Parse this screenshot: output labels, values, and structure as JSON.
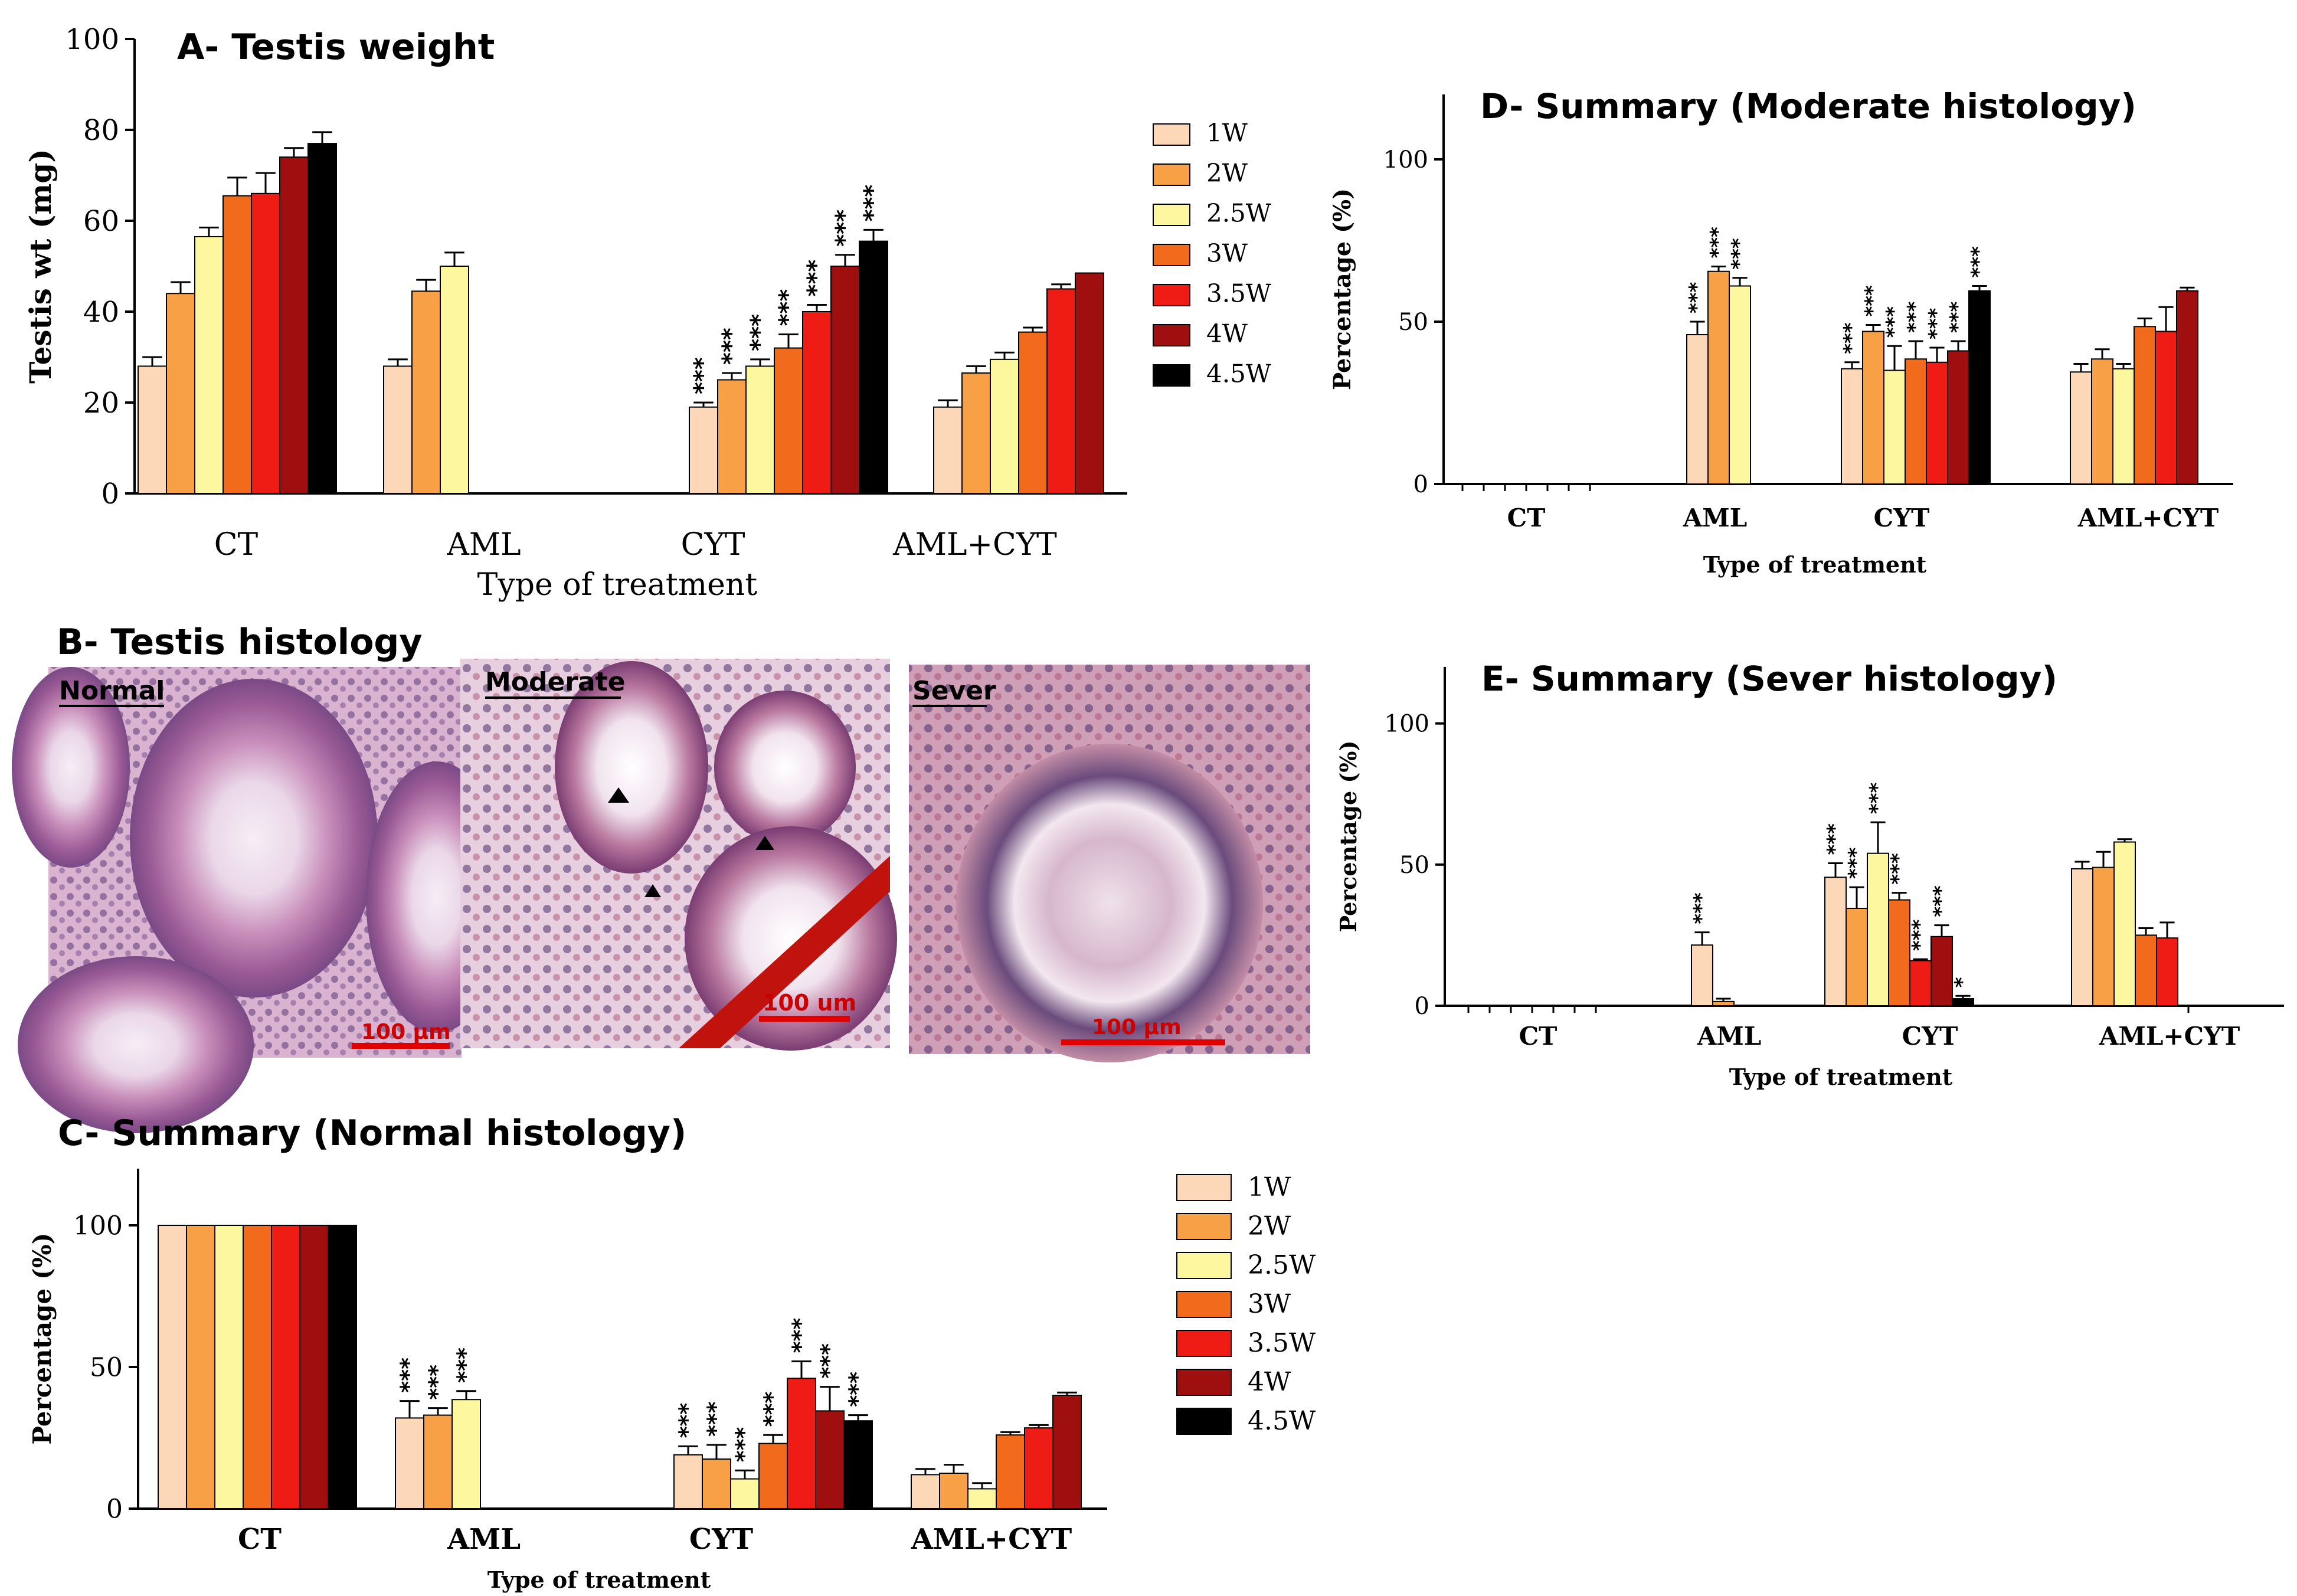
{
  "colors": {
    "1W": "#fcd8b8",
    "2W": "#f7a045",
    "2.5W": "#fdf7a0",
    "3W": "#f26a1b",
    "3.5W": "#ee1c14",
    "4W": "#a00f10",
    "4.5W": "#000000"
  },
  "legend_labels": [
    "1W",
    "2W",
    "2.5W",
    "3W",
    "3.5W",
    "4W",
    "4.5W"
  ],
  "chart_data": [
    {
      "id": "A",
      "type": "bar",
      "title": "A- Testis weight",
      "xlabel": "Type of treatment",
      "ylabel": "Testis wt (mg)",
      "ylim": [
        0,
        100
      ],
      "yticks": [
        "0",
        "20",
        "40",
        "60",
        "80",
        "100"
      ],
      "categories": [
        "CT",
        "AML",
        "CYT",
        "AML+CYT"
      ],
      "series": [
        {
          "name": "1W",
          "values": [
            28,
            28,
            19,
            19
          ],
          "errors": [
            2,
            1.5,
            1,
            1.5
          ],
          "sig": [
            "",
            "",
            "***",
            ""
          ]
        },
        {
          "name": "2W",
          "values": [
            44,
            44.5,
            25,
            26.5
          ],
          "errors": [
            2.5,
            2.5,
            1.5,
            1.5
          ],
          "sig": [
            "",
            "",
            "***",
            ""
          ]
        },
        {
          "name": "2.5W",
          "values": [
            56.5,
            50,
            28,
            29.5
          ],
          "errors": [
            2,
            3,
            1.5,
            1.5
          ],
          "sig": [
            "",
            "",
            "***",
            ""
          ]
        },
        {
          "name": "3W",
          "values": [
            65.5,
            null,
            32,
            35.5
          ],
          "errors": [
            4,
            0,
            3,
            1
          ],
          "sig": [
            "",
            "",
            "***",
            ""
          ]
        },
        {
          "name": "3.5W",
          "values": [
            66,
            null,
            40,
            45
          ],
          "errors": [
            4.5,
            0,
            1.5,
            1
          ],
          "sig": [
            "",
            "",
            "***",
            ""
          ]
        },
        {
          "name": "4W",
          "values": [
            74,
            null,
            50,
            48.5
          ],
          "errors": [
            2,
            0,
            2.5,
            0
          ],
          "sig": [
            "",
            "",
            "***",
            ""
          ]
        },
        {
          "name": "4.5W",
          "values": [
            77,
            null,
            55.5,
            null
          ],
          "errors": [
            2.5,
            0,
            2.5,
            0
          ],
          "sig": [
            "",
            "",
            "***",
            ""
          ]
        }
      ]
    },
    {
      "id": "C",
      "type": "bar",
      "title": "C- Summary (Normal histology)",
      "xlabel": "Type of treatment",
      "ylabel": "Percentage (%)",
      "ylim": [
        0,
        120
      ],
      "yticks": [
        "0",
        "50",
        "100"
      ],
      "categories": [
        "CT",
        "AML",
        "CYT",
        "AML+CYT"
      ],
      "series": [
        {
          "name": "1W",
          "values": [
            100,
            32,
            19,
            12
          ],
          "errors": [
            0,
            6,
            3,
            2
          ],
          "sig": [
            "",
            "***",
            "***",
            ""
          ]
        },
        {
          "name": "2W",
          "values": [
            100,
            33,
            17.5,
            12.5
          ],
          "errors": [
            0,
            2.5,
            5,
            3
          ],
          "sig": [
            "",
            "***",
            "***",
            ""
          ]
        },
        {
          "name": "2.5W",
          "values": [
            100,
            38.5,
            10.5,
            7
          ],
          "errors": [
            0,
            3,
            3,
            2
          ],
          "sig": [
            "",
            "***",
            "***",
            ""
          ]
        },
        {
          "name": "3W",
          "values": [
            100,
            null,
            23,
            26
          ],
          "errors": [
            0,
            0,
            3,
            1
          ],
          "sig": [
            "",
            "",
            "***",
            ""
          ]
        },
        {
          "name": "3.5W",
          "values": [
            100,
            null,
            46,
            28.5
          ],
          "errors": [
            0,
            0,
            6,
            1
          ],
          "sig": [
            "",
            "",
            "***",
            ""
          ]
        },
        {
          "name": "4W",
          "values": [
            100,
            null,
            34.5,
            40
          ],
          "errors": [
            0,
            0,
            8.5,
            1
          ],
          "sig": [
            "",
            "",
            "***",
            ""
          ]
        },
        {
          "name": "4.5W",
          "values": [
            100,
            null,
            31,
            null
          ],
          "errors": [
            0,
            0,
            2,
            0
          ],
          "sig": [
            "",
            "",
            "***",
            ""
          ]
        }
      ]
    },
    {
      "id": "D",
      "type": "bar",
      "title": "D- Summary (Moderate histology)",
      "xlabel": "Type of treatment",
      "ylabel": "Percentage (%)",
      "ylim": [
        0,
        120
      ],
      "yticks": [
        "0",
        "50",
        "100"
      ],
      "categories": [
        "CT",
        "AML",
        "CYT",
        "AML+CYT"
      ],
      "series": [
        {
          "name": "1W",
          "values": [
            0,
            46,
            35.5,
            34.5
          ],
          "errors": [
            0,
            4,
            2,
            2.5
          ],
          "sig": [
            "",
            "***",
            "***",
            ""
          ]
        },
        {
          "name": "2W",
          "values": [
            0,
            65.5,
            47,
            38.5
          ],
          "errors": [
            0,
            1.5,
            2,
            3
          ],
          "sig": [
            "",
            "***",
            "***",
            ""
          ]
        },
        {
          "name": "2.5W",
          "values": [
            0,
            61,
            35,
            35.5
          ],
          "errors": [
            0,
            2.5,
            7.5,
            1.5
          ],
          "sig": [
            "",
            "***",
            "***",
            ""
          ]
        },
        {
          "name": "3W",
          "values": [
            0,
            null,
            38.5,
            48.5
          ],
          "errors": [
            0,
            0,
            5.5,
            2.5
          ],
          "sig": [
            "",
            "",
            "***",
            ""
          ]
        },
        {
          "name": "3.5W",
          "values": [
            0,
            null,
            37.5,
            47
          ],
          "errors": [
            0,
            0,
            4.5,
            7.5
          ],
          "sig": [
            "",
            "",
            "***",
            ""
          ]
        },
        {
          "name": "4W",
          "values": [
            0,
            null,
            41,
            59.5
          ],
          "errors": [
            0,
            0,
            3,
            1
          ],
          "sig": [
            "",
            "",
            "***",
            ""
          ]
        },
        {
          "name": "4.5W",
          "values": [
            0,
            null,
            59.5,
            null
          ],
          "errors": [
            0,
            0,
            1.5,
            0
          ],
          "sig": [
            "",
            "",
            "***",
            ""
          ]
        }
      ]
    },
    {
      "id": "E",
      "type": "bar",
      "title": "E- Summary (Sever histology)",
      "xlabel": "Type of treatment",
      "ylabel": "Percentage (%)",
      "ylim": [
        0,
        120
      ],
      "yticks": [
        "0",
        "50",
        "100"
      ],
      "categories": [
        "CT",
        "AML",
        "CYT",
        "AML+CYT"
      ],
      "series": [
        {
          "name": "1W",
          "values": [
            0,
            21.5,
            45.5,
            48.5
          ],
          "errors": [
            0,
            4.5,
            5,
            2.5
          ],
          "sig": [
            "",
            "***",
            "***",
            ""
          ]
        },
        {
          "name": "2W",
          "values": [
            0,
            1.5,
            34.5,
            49
          ],
          "errors": [
            0,
            1,
            7.5,
            5.5
          ],
          "sig": [
            "",
            "",
            "***",
            ""
          ]
        },
        {
          "name": "2.5W",
          "values": [
            0,
            null,
            54,
            58
          ],
          "errors": [
            0,
            0,
            11,
            1
          ],
          "sig": [
            "",
            "",
            "***",
            ""
          ]
        },
        {
          "name": "3W",
          "values": [
            0,
            null,
            37.5,
            25
          ],
          "errors": [
            0,
            0,
            2.5,
            2.5
          ],
          "sig": [
            "",
            "",
            "***",
            ""
          ]
        },
        {
          "name": "3.5W",
          "values": [
            0,
            null,
            16,
            24
          ],
          "errors": [
            0,
            0,
            0.5,
            5.5
          ],
          "sig": [
            "",
            "",
            "***",
            ""
          ]
        },
        {
          "name": "4W",
          "values": [
            0,
            null,
            24.5,
            0
          ],
          "errors": [
            0,
            0,
            4,
            0
          ],
          "sig": [
            "",
            "",
            "***",
            ""
          ]
        },
        {
          "name": "4.5W",
          "values": [
            0,
            null,
            2.5,
            null
          ],
          "errors": [
            0,
            0,
            1,
            0
          ],
          "sig": [
            "",
            "",
            "*",
            ""
          ]
        }
      ]
    }
  ],
  "histology": {
    "title": "B- Testis histology",
    "panels": [
      {
        "label": "Normal",
        "scale": "100 µm"
      },
      {
        "label": "Moderate",
        "scale": "100 um"
      },
      {
        "label": "Sever",
        "scale": "100 µm"
      }
    ]
  }
}
